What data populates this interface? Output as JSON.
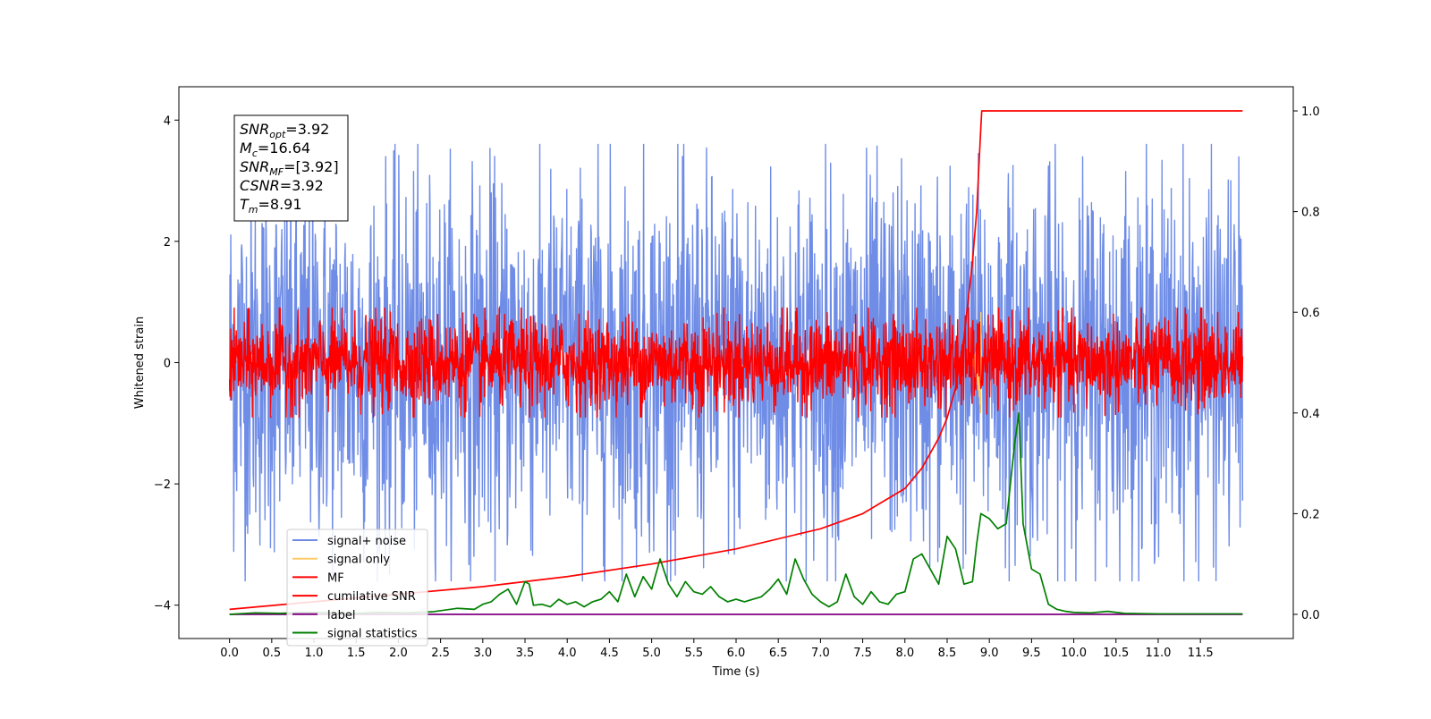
{
  "chart_data": {
    "type": "line",
    "xlabel": "Time (s)",
    "ylabel": "Whitened strain",
    "ylabel_right": "",
    "xlim": [
      -0.6,
      12.6
    ],
    "ylim": [
      -4.55,
      4.55
    ],
    "ylim_right": [
      -0.048,
      1.048
    ],
    "xticks": [
      0.0,
      0.5,
      1.0,
      1.5,
      2.0,
      2.5,
      3.0,
      3.5,
      4.0,
      4.5,
      5.0,
      5.5,
      6.0,
      6.5,
      7.0,
      7.5,
      8.0,
      8.5,
      9.0,
      9.5,
      10.0,
      10.5,
      11.0,
      11.5
    ],
    "xtick_labels": [
      "0.0",
      "0.5",
      "1.0",
      "1.5",
      "2.0",
      "2.5",
      "3.0",
      "3.5",
      "4.0",
      "4.5",
      "5.0",
      "5.5",
      "6.0",
      "6.5",
      "7.0",
      "7.5",
      "8.0",
      "8.5",
      "9.0",
      "9.5",
      "10.0",
      "10.5",
      "11.0",
      "11.5"
    ],
    "yticks": [
      -4,
      -2,
      0,
      2,
      4
    ],
    "ytick_labels": [
      "−4",
      "−2",
      "0",
      "2",
      "4"
    ],
    "yticks_right": [
      0.0,
      0.2,
      0.4,
      0.6,
      0.8,
      1.0
    ],
    "ytick_labels_right": [
      "0.0",
      "0.2",
      "0.4",
      "0.6",
      "0.8",
      "1.0"
    ],
    "grid": false,
    "legend_position": "lower-left",
    "annotation": {
      "lines": [
        {
          "main": "SNR",
          "sub": "opt",
          "value": "=3.92"
        },
        {
          "main": "M",
          "sub": "c",
          "value": "=16.64"
        },
        {
          "main": "SNR",
          "sub": "MF",
          "value": "=[3.92]"
        },
        {
          "main": "CSNR",
          "sub": "",
          "value": "=3.92"
        },
        {
          "main": "T",
          "sub": "m",
          "value": "=8.91"
        }
      ]
    },
    "series": [
      {
        "name": "signal+ noise",
        "color": "#6f8de6",
        "axis": "left",
        "kind": "noise",
        "amplitude": 3.6,
        "x_range": [
          0.0,
          12.0
        ]
      },
      {
        "name": "signal only",
        "color": "#ffcc66",
        "axis": "left",
        "kind": "chirp",
        "peak_time": 8.9,
        "peak_amplitude": 0.9
      },
      {
        "name": "MF",
        "color": "#ff0000",
        "axis": "left",
        "kind": "noise",
        "amplitude": 0.9,
        "x_range": [
          0.0,
          12.0
        ]
      },
      {
        "name": "cumilative SNR",
        "color": "#ff0000",
        "axis": "right",
        "kind": "curve",
        "x": [
          0.0,
          1.0,
          2.0,
          3.0,
          4.0,
          5.0,
          6.0,
          7.0,
          7.5,
          8.0,
          8.2,
          8.4,
          8.5,
          8.6,
          8.7,
          8.8,
          8.85,
          8.9,
          8.91,
          12.0
        ],
        "y": [
          0.01,
          0.025,
          0.04,
          0.055,
          0.075,
          0.1,
          0.13,
          0.17,
          0.2,
          0.25,
          0.29,
          0.35,
          0.39,
          0.45,
          0.55,
          0.7,
          0.8,
          0.97,
          1.0,
          1.0
        ]
      },
      {
        "name": "label",
        "color": "#800080",
        "axis": "right",
        "kind": "curve",
        "x": [
          0.0,
          12.0
        ],
        "y": [
          0.0,
          0.0
        ]
      },
      {
        "name": "signal statistics",
        "color": "#008000",
        "axis": "right",
        "kind": "curve",
        "x": [
          0.0,
          0.3,
          0.6,
          0.9,
          1.2,
          1.5,
          1.8,
          2.1,
          2.4,
          2.7,
          2.9,
          3.0,
          3.1,
          3.2,
          3.3,
          3.4,
          3.5,
          3.55,
          3.6,
          3.7,
          3.8,
          3.9,
          4.0,
          4.1,
          4.2,
          4.3,
          4.4,
          4.5,
          4.6,
          4.7,
          4.8,
          4.9,
          5.0,
          5.1,
          5.2,
          5.3,
          5.4,
          5.5,
          5.6,
          5.7,
          5.8,
          5.9,
          6.0,
          6.1,
          6.2,
          6.3,
          6.4,
          6.5,
          6.6,
          6.7,
          6.8,
          6.9,
          7.0,
          7.1,
          7.2,
          7.3,
          7.4,
          7.5,
          7.6,
          7.7,
          7.8,
          7.9,
          8.0,
          8.1,
          8.2,
          8.3,
          8.4,
          8.5,
          8.6,
          8.7,
          8.8,
          8.85,
          8.9,
          9.0,
          9.1,
          9.2,
          9.3,
          9.35,
          9.4,
          9.5,
          9.6,
          9.7,
          9.8,
          9.9,
          10.0,
          10.2,
          10.4,
          10.6,
          11.0,
          11.5,
          12.0
        ],
        "y": [
          0.0,
          0.003,
          0.002,
          0.004,
          0.003,
          0.002,
          0.004,
          0.003,
          0.005,
          0.012,
          0.01,
          0.02,
          0.025,
          0.04,
          0.05,
          0.02,
          0.065,
          0.06,
          0.018,
          0.02,
          0.015,
          0.03,
          0.02,
          0.025,
          0.015,
          0.025,
          0.03,
          0.045,
          0.025,
          0.08,
          0.035,
          0.075,
          0.05,
          0.11,
          0.06,
          0.035,
          0.065,
          0.045,
          0.04,
          0.055,
          0.035,
          0.025,
          0.03,
          0.025,
          0.03,
          0.035,
          0.05,
          0.07,
          0.04,
          0.11,
          0.07,
          0.04,
          0.025,
          0.015,
          0.025,
          0.08,
          0.035,
          0.02,
          0.045,
          0.025,
          0.02,
          0.04,
          0.045,
          0.11,
          0.12,
          0.09,
          0.06,
          0.155,
          0.13,
          0.06,
          0.065,
          0.14,
          0.2,
          0.19,
          0.17,
          0.18,
          0.34,
          0.4,
          0.18,
          0.09,
          0.08,
          0.02,
          0.01,
          0.006,
          0.004,
          0.003,
          0.006,
          0.002,
          0.001,
          0.001,
          0.001
        ]
      }
    ]
  }
}
